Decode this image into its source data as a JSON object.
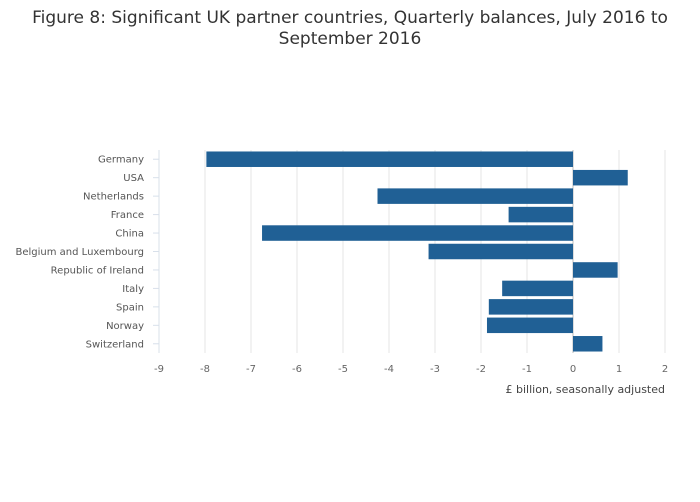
{
  "chart_data": {
    "type": "bar",
    "orientation": "horizontal",
    "title": "Figure 8: Significant UK partner countries, Quarterly balances, July 2016 to September 2016",
    "title_lines": [
      "Figure 8: Significant UK partner countries, Quarterly balances, July 2016 to",
      "September 2016"
    ],
    "xlabel": "£ billion, seasonally adjusted",
    "ylabel": "",
    "xlim": [
      -9,
      2
    ],
    "xticks": [
      -9,
      -8,
      -7,
      -6,
      -5,
      -4,
      -3,
      -2,
      -1,
      0,
      1,
      2
    ],
    "grid": true,
    "bar_color": "#206095",
    "categories": [
      "Germany",
      "USA",
      "Netherlands",
      "France",
      "China",
      "Belgium and Luxembourg",
      "Republic of Ireland",
      "Italy",
      "Spain",
      "Norway",
      "Switzerland"
    ],
    "values": [
      -7.97,
      1.19,
      -4.25,
      -1.4,
      -6.76,
      -3.14,
      0.97,
      -1.54,
      -1.83,
      -1.87,
      0.64
    ]
  }
}
